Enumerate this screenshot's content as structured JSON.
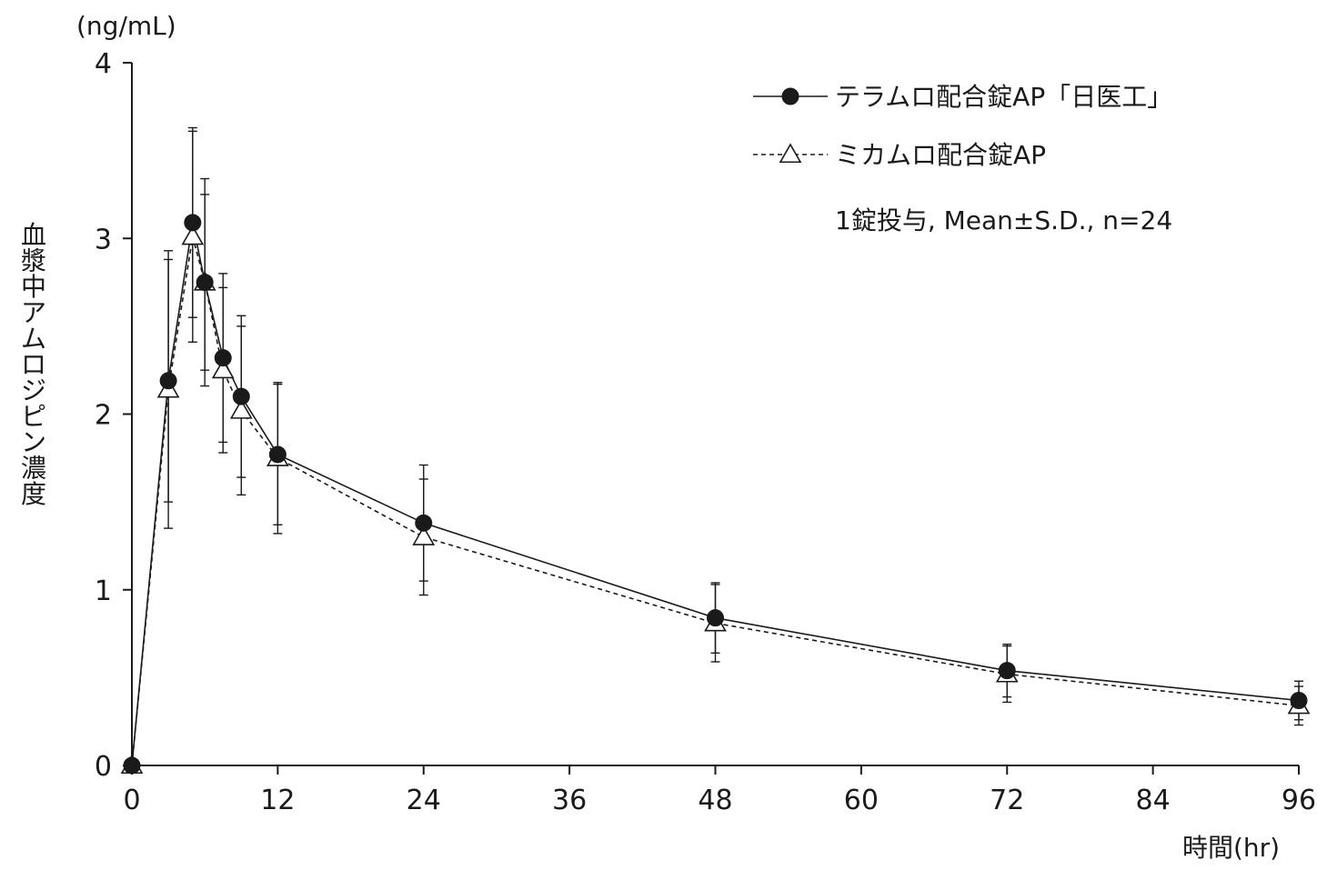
{
  "chart_data": {
    "type": "line",
    "yunit": "(ng/mL)",
    "ylabel": "血漿中アムロジピン濃度",
    "xlabel": "時間(hr)",
    "xlim": [
      0,
      96
    ],
    "ylim": [
      0,
      4
    ],
    "xticks": [
      0,
      12,
      24,
      36,
      48,
      60,
      72,
      84,
      96
    ],
    "yticks": [
      0,
      1,
      2,
      3,
      4
    ],
    "legend_position": "top-right",
    "note": "1錠投与, Mean±S.D., n=24",
    "series": [
      {
        "name": "テラムロ配合錠AP「日医工」",
        "marker": "filled-circle",
        "line": "solid",
        "x": [
          0,
          3,
          5,
          6,
          7.5,
          9,
          12,
          24,
          48,
          72,
          96
        ],
        "y": [
          0,
          2.19,
          3.09,
          2.75,
          2.32,
          2.1,
          1.77,
          1.38,
          0.84,
          0.54,
          0.37
        ],
        "sd": [
          0,
          0.69,
          0.54,
          0.59,
          0.48,
          0.46,
          0.4,
          0.33,
          0.2,
          0.15,
          0.11
        ]
      },
      {
        "name": "ミカムロ配合錠AP",
        "marker": "open-triangle",
        "line": "dashed",
        "x": [
          0,
          3,
          5,
          6,
          7.5,
          9,
          12,
          24,
          48,
          72,
          96
        ],
        "y": [
          0,
          2.14,
          3.01,
          2.75,
          2.25,
          2.02,
          1.75,
          1.3,
          0.81,
          0.52,
          0.34
        ],
        "sd": [
          0,
          0.79,
          0.6,
          0.5,
          0.47,
          0.48,
          0.43,
          0.33,
          0.22,
          0.16,
          0.11
        ]
      }
    ]
  }
}
